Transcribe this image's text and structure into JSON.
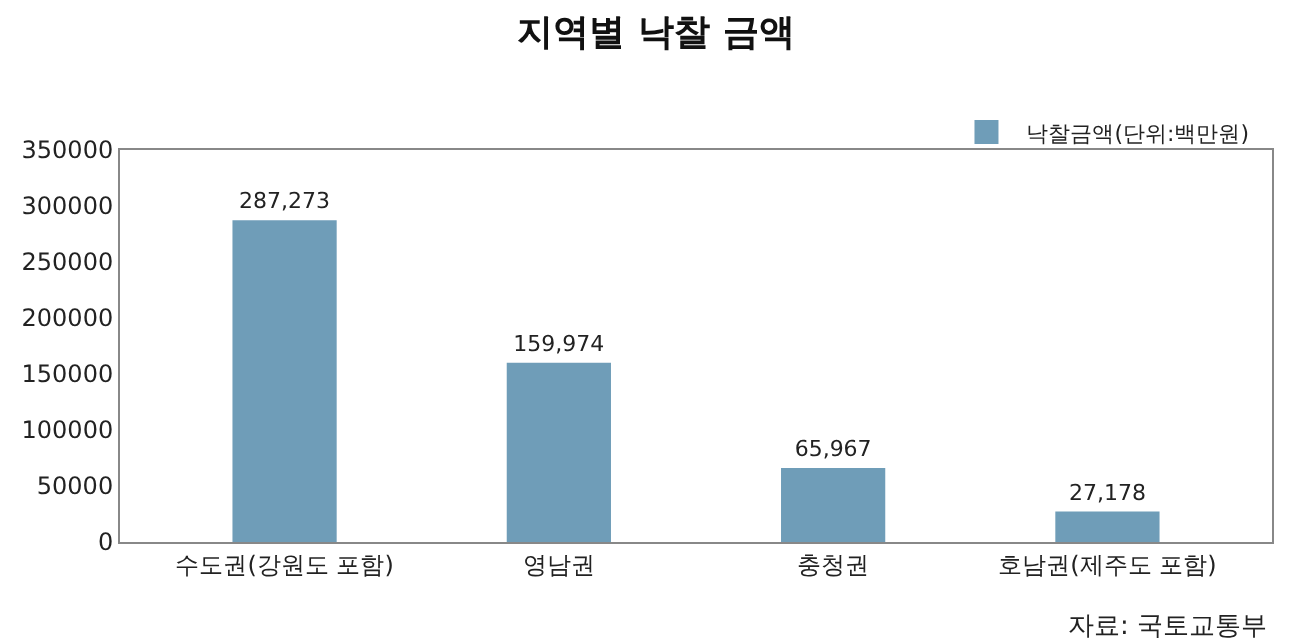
{
  "chart_data": {
    "type": "bar",
    "title": "지역별 낙찰 금액",
    "categories": [
      "수도권(강원도 포함)",
      "영남권",
      "충청권",
      "호남권(제주도 포함)"
    ],
    "series": [
      {
        "name": "낙찰금액(단위:백만원)",
        "color": "#6f9db8",
        "values": [
          287273,
          159974,
          65967,
          27178
        ],
        "value_labels": [
          "287,273",
          "159,974",
          "65,967",
          "27,178"
        ]
      }
    ],
    "ylim": [
      0,
      350000
    ],
    "yticks": [
      0,
      50000,
      100000,
      150000,
      200000,
      250000,
      300000,
      350000
    ],
    "legend": "top right",
    "annotations": [
      "자료: 국토교통부"
    ]
  }
}
